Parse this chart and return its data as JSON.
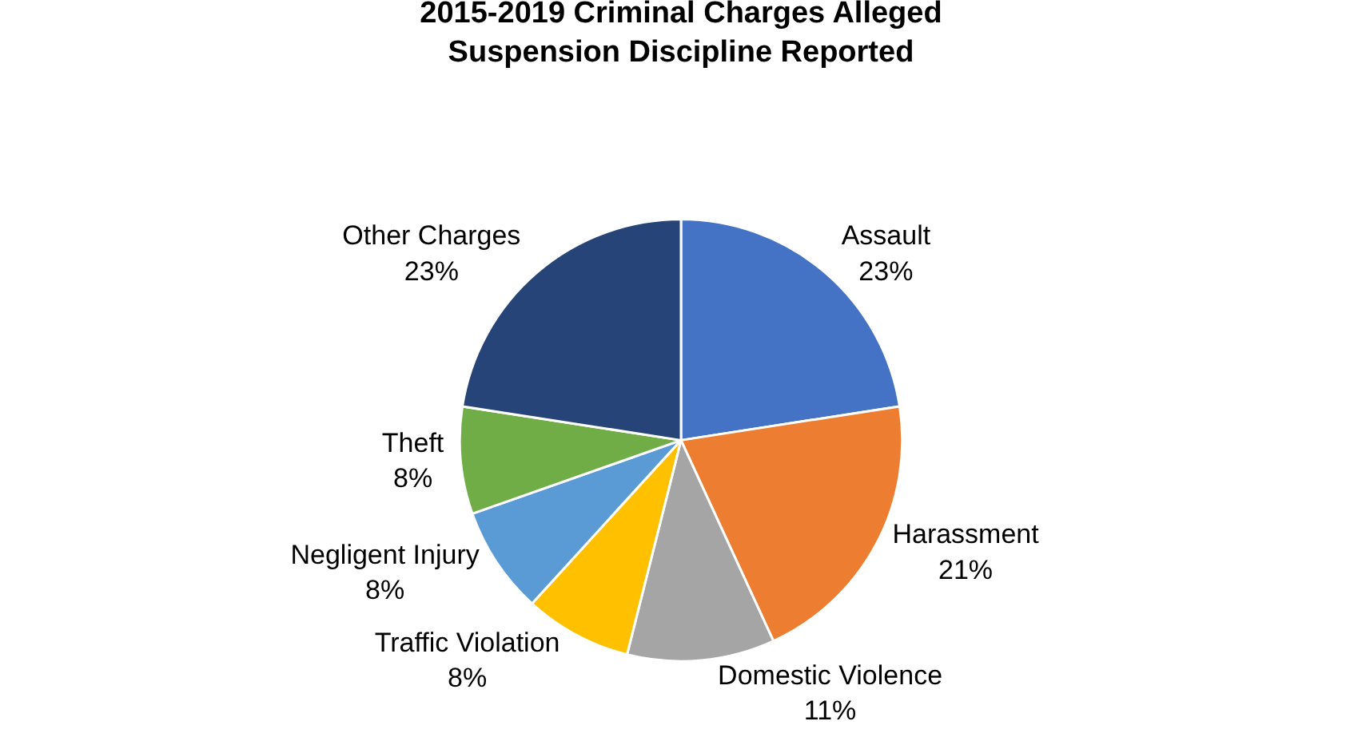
{
  "chart_data": {
    "type": "pie",
    "title": "2015-2019 Criminal Charges Alleged\nSuspension Discipline Reported",
    "categories": [
      "Assault",
      "Harassment",
      "Domestic Violence",
      "Traffic Violation",
      "Negligent Injury",
      "Theft",
      "Other Charges"
    ],
    "values": [
      23,
      21,
      11,
      8,
      8,
      8,
      23
    ],
    "value_labels": [
      "23%",
      "21%",
      "11%",
      "8%",
      "8%",
      "8%",
      "23%"
    ],
    "colors": [
      "#4472c4",
      "#ed7d31",
      "#a5a5a5",
      "#ffc000",
      "#5b9bd5",
      "#70ad47",
      "#264478"
    ],
    "legend": false
  }
}
